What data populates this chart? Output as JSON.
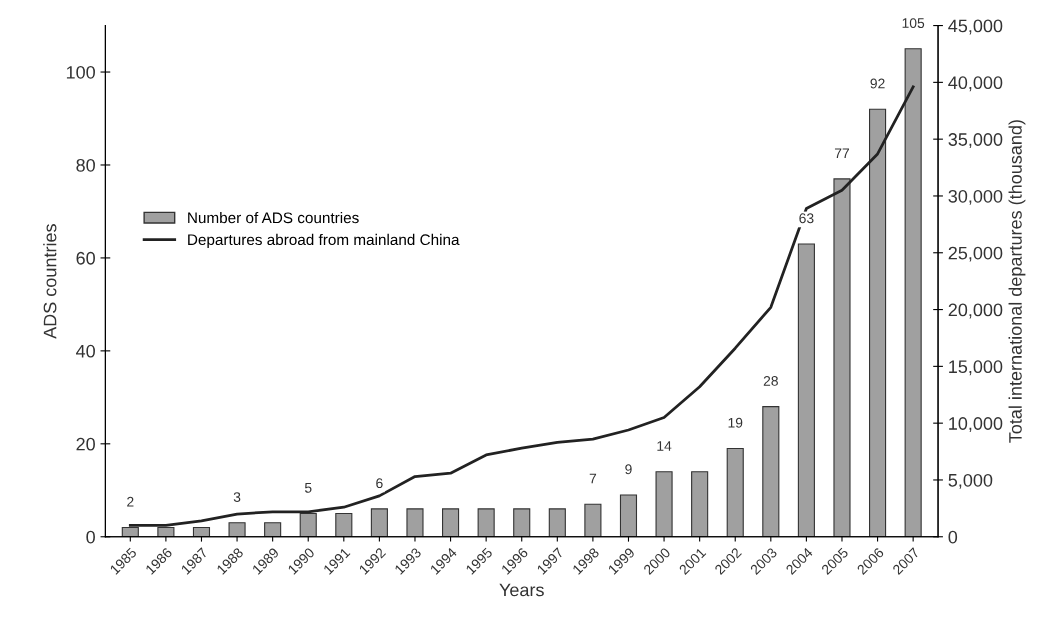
{
  "chart_data": {
    "type": "bar",
    "xlabel": "Years",
    "ylabel": "ADS countries",
    "y2label": "Total international departures (thousand)",
    "categories": [
      "1985",
      "1986",
      "1987",
      "1988",
      "1989",
      "1990",
      "1991",
      "1992",
      "1993",
      "1994",
      "1995",
      "1996",
      "1997",
      "1998",
      "1999",
      "2000",
      "2001",
      "2002",
      "2003",
      "2004",
      "2005",
      "2006",
      "2007"
    ],
    "series": [
      {
        "name": "Number of ADS countries",
        "color": "#a0a0a0",
        "values": [
          2,
          2,
          2,
          3,
          3,
          5,
          5,
          6,
          6,
          6,
          6,
          6,
          6,
          7,
          9,
          14,
          14,
          19,
          28,
          63,
          77,
          92,
          105
        ],
        "value_labels": [
          "2",
          null,
          null,
          "3",
          null,
          "5",
          null,
          "6",
          null,
          null,
          null,
          null,
          null,
          "7",
          "9",
          "14",
          null,
          "19",
          "28",
          "63",
          "77",
          "92",
          "105"
        ]
      },
      {
        "name": "Departures abroad from mainland China",
        "type": "line",
        "axis": "y2",
        "color": "#222222",
        "values": [
          1000,
          1000,
          1400,
          2000,
          2200,
          2200,
          2600,
          3600,
          5300,
          5600,
          7200,
          7800,
          8300,
          8600,
          9400,
          10500,
          13200,
          16600,
          20200,
          28900,
          30500,
          33700,
          39600
        ]
      }
    ],
    "ylim": [
      0,
      110
    ],
    "yticks": [
      0,
      20,
      40,
      60,
      80,
      100
    ],
    "y2lim": [
      0,
      45000
    ],
    "y2ticks": [
      {
        "value": 0,
        "label": "0"
      },
      {
        "value": 5000,
        "label": "5,000"
      },
      {
        "value": 10000,
        "label": "10,000"
      },
      {
        "value": 15000,
        "label": "15,000"
      },
      {
        "value": 20000,
        "label": "20,000"
      },
      {
        "value": 25000,
        "label": "25,000"
      },
      {
        "value": 30000,
        "label": "30,000"
      },
      {
        "value": 35000,
        "label": "35,000"
      },
      {
        "value": 40000,
        "label": "40,000"
      },
      {
        "value": 45000,
        "label": "45,000"
      }
    ],
    "legend": "center left",
    "grid": false,
    "marker": "none",
    "line_style": "solid"
  }
}
